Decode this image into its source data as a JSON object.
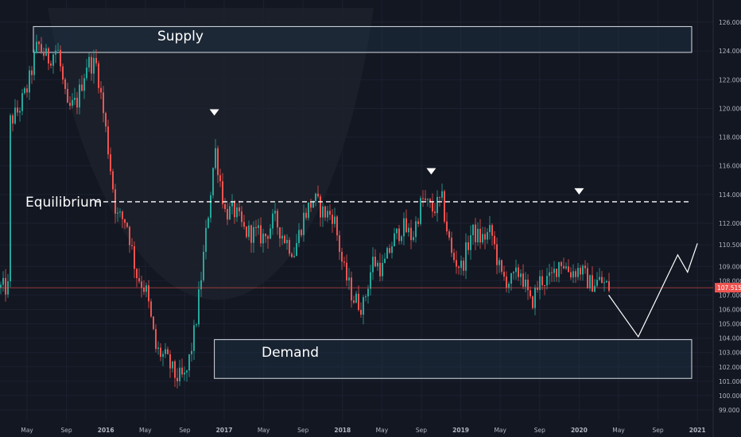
{
  "chart_data": {
    "type": "candlestick",
    "title": "",
    "xlabel": "",
    "ylabel": "",
    "x_ticks": [
      "May",
      "Sep",
      "2016",
      "May",
      "Sep",
      "2017",
      "May",
      "Sep",
      "2018",
      "May",
      "Sep",
      "2019",
      "May",
      "Sep",
      "2020",
      "May",
      "Sep",
      "2021"
    ],
    "y_ticks": [
      126,
      124,
      122,
      120,
      118,
      116,
      114,
      112,
      110.5,
      109,
      108,
      107,
      106,
      105,
      104,
      103,
      102,
      101,
      100,
      99
    ],
    "ylim": [
      98.3,
      127.8
    ],
    "current_price_label": "107.515",
    "current_price": 107.515,
    "zones": [
      {
        "label": "Supply",
        "from": 123.9,
        "to": 125.7,
        "start": "2015-05",
        "end": "2021-01"
      },
      {
        "label": "Demand",
        "from": 101.2,
        "to": 103.9,
        "start": "2016-12",
        "end": "2021-01"
      }
    ],
    "equilibrium": {
      "label": "Equilibrium",
      "value": 113.5,
      "style": "dashed"
    },
    "markers": [
      {
        "shape": "triangle-down",
        "date": "2016-12",
        "value": 119.5
      },
      {
        "shape": "triangle-down",
        "date": "2018-10",
        "value": 115.4
      },
      {
        "shape": "triangle-down",
        "date": "2020-01",
        "value": 114.0
      }
    ],
    "projection_path": [
      {
        "date": "2020-04",
        "value": 107.0
      },
      {
        "date": "2020-07",
        "value": 104.1
      },
      {
        "date": "2020-11",
        "value": 109.8
      },
      {
        "date": "2020-12",
        "value": 108.6
      },
      {
        "date": "2021-01",
        "value": 110.6
      }
    ],
    "price_path": [
      [
        "2015-03",
        118.9
      ],
      [
        "2015-04",
        119.8
      ],
      [
        "2015-05",
        121.5
      ],
      [
        "2015-06",
        124.5
      ],
      [
        "2015-07",
        123.4
      ],
      [
        "2015-08",
        124.2
      ],
      [
        "2015-09",
        119.8
      ],
      [
        "2015-10",
        120.5
      ],
      [
        "2015-11",
        123.2
      ],
      [
        "2015-12",
        123.0
      ],
      [
        "2016-01",
        118.0
      ],
      [
        "2016-02",
        112.5
      ],
      [
        "2016-03",
        112.2
      ],
      [
        "2016-04",
        108.5
      ],
      [
        "2016-05",
        107.3
      ],
      [
        "2016-06",
        103.2
      ],
      [
        "2016-07",
        102.6
      ],
      [
        "2016-08",
        101.3
      ],
      [
        "2016-09",
        101.2
      ],
      [
        "2016-10",
        104.8
      ],
      [
        "2016-11",
        110.8
      ],
      [
        "2016-12",
        117.2
      ],
      [
        "2017-01",
        112.8
      ],
      [
        "2017-02",
        112.8
      ],
      [
        "2017-03",
        111.4
      ],
      [
        "2017-04",
        111.3
      ],
      [
        "2017-05",
        111.0
      ],
      [
        "2017-06",
        112.3
      ],
      [
        "2017-07",
        111.0
      ],
      [
        "2017-08",
        110.0
      ],
      [
        "2017-09",
        112.5
      ],
      [
        "2017-10",
        113.7
      ],
      [
        "2017-11",
        112.7
      ],
      [
        "2017-12",
        112.6
      ],
      [
        "2018-01",
        108.8
      ],
      [
        "2018-02",
        106.8
      ],
      [
        "2018-03",
        106.2
      ],
      [
        "2018-04",
        109.4
      ],
      [
        "2018-05",
        108.8
      ],
      [
        "2018-06",
        110.7
      ],
      [
        "2018-07",
        111.8
      ],
      [
        "2018-08",
        111.0
      ],
      [
        "2018-09",
        113.7
      ],
      [
        "2018-10",
        112.9
      ],
      [
        "2018-11",
        113.6
      ],
      [
        "2018-12",
        109.7
      ],
      [
        "2019-01",
        108.9
      ],
      [
        "2019-02",
        111.4
      ],
      [
        "2019-03",
        110.9
      ],
      [
        "2019-04",
        111.4
      ],
      [
        "2019-05",
        108.3
      ],
      [
        "2019-06",
        107.9
      ],
      [
        "2019-07",
        108.7
      ],
      [
        "2019-08",
        106.3
      ],
      [
        "2019-09",
        108.1
      ],
      [
        "2019-10",
        108.0
      ],
      [
        "2019-11",
        109.5
      ],
      [
        "2019-12",
        108.6
      ],
      [
        "2020-01",
        108.8
      ],
      [
        "2020-02",
        107.8
      ],
      [
        "2020-03",
        108.0
      ],
      [
        "2020-04",
        107.5
      ]
    ]
  }
}
